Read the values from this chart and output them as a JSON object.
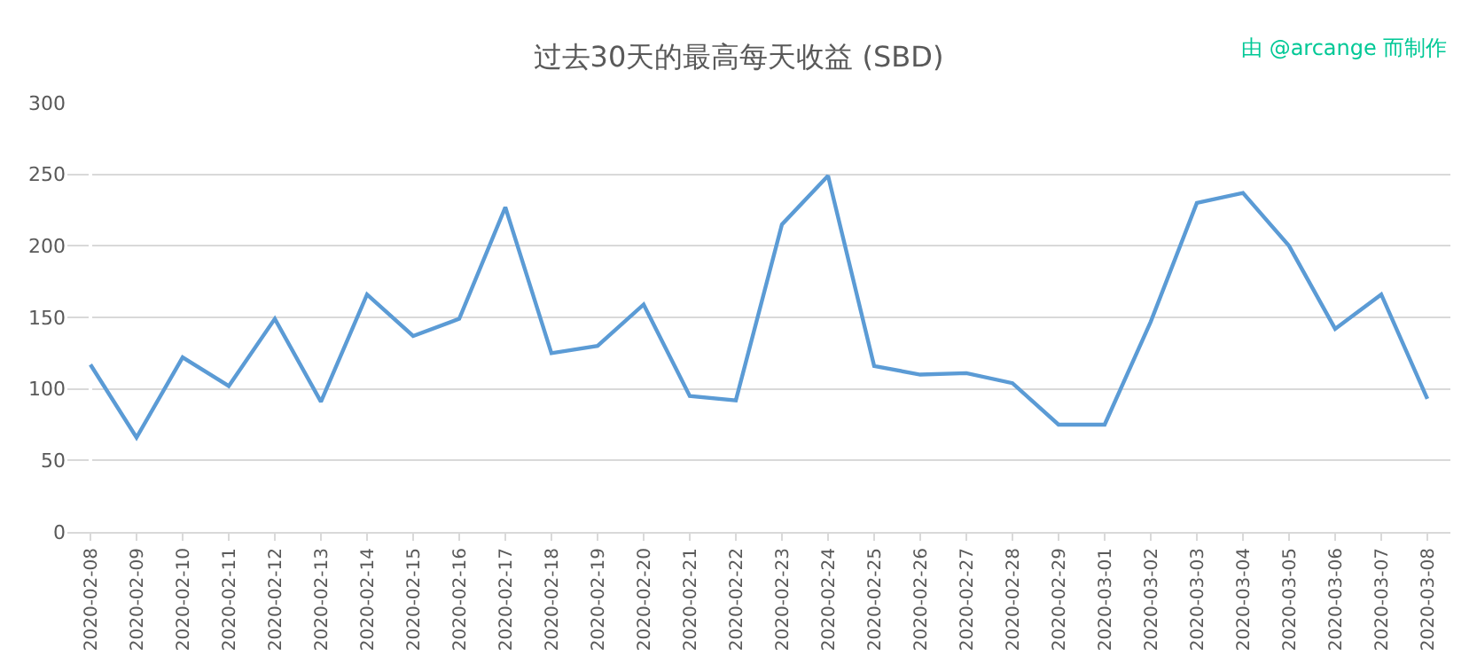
{
  "chart_data": {
    "type": "line",
    "title": "过去30天的最高每天收益 (SBD)",
    "annotations": [
      "由 @arcange 而制作"
    ],
    "categories": [
      "2020-02-08",
      "2020-02-09",
      "2020-02-10",
      "2020-02-11",
      "2020-02-12",
      "2020-02-13",
      "2020-02-14",
      "2020-02-15",
      "2020-02-16",
      "2020-02-17",
      "2020-02-18",
      "2020-02-19",
      "2020-02-20",
      "2020-02-21",
      "2020-02-22",
      "2020-02-23",
      "2020-02-24",
      "2020-02-25",
      "2020-02-26",
      "2020-02-27",
      "2020-02-28",
      "2020-02-29",
      "2020-03-01",
      "2020-03-02",
      "2020-03-03",
      "2020-03-04",
      "2020-03-05",
      "2020-03-06",
      "2020-03-07",
      "2020-03-08"
    ],
    "series": [
      {
        "color": "#5b9bd5",
        "values": [
          117,
          66,
          122,
          102,
          149,
          91,
          166,
          137,
          149,
          227,
          125,
          130,
          159,
          95,
          92,
          215,
          249,
          116,
          110,
          111,
          104,
          75,
          75,
          147,
          230,
          237,
          200,
          142,
          166,
          93
        ]
      }
    ],
    "ylim": [
      0,
      300
    ],
    "yticks": [
      0,
      50,
      100,
      150,
      200,
      250,
      300
    ],
    "grid": "y",
    "marker": "none",
    "line_style": "solid"
  }
}
